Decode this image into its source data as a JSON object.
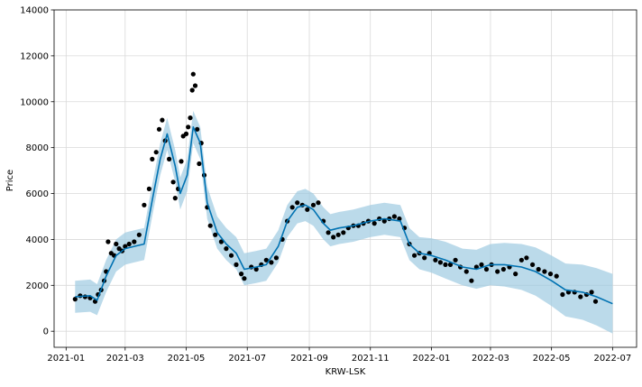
{
  "chart_data": {
    "type": "line",
    "xlabel": "KRW-LSK",
    "ylabel": "Price",
    "xlim": [
      "2020-12-20",
      "2022-07-25"
    ],
    "ylim": [
      -700,
      14000
    ],
    "x_ticks": [
      "2021-01",
      "2021-03",
      "2021-05",
      "2021-07",
      "2021-09",
      "2021-11",
      "2022-01",
      "2022-03",
      "2022-05",
      "2022-07"
    ],
    "y_ticks": [
      0,
      2000,
      4000,
      6000,
      8000,
      10000,
      12000,
      14000
    ],
    "grid": true,
    "colors": {
      "observed": "#000000",
      "forecast": "#0072b2",
      "uncertainty": "#9ecae1"
    },
    "series": [
      {
        "kind": "observed",
        "marker": "dot",
        "x": [
          "2021-01-10",
          "2021-01-15",
          "2021-01-20",
          "2021-01-25",
          "2021-01-30",
          "2021-02-02",
          "2021-02-05",
          "2021-02-08",
          "2021-02-10",
          "2021-02-12",
          "2021-02-15",
          "2021-02-18",
          "2021-02-20",
          "2021-02-23",
          "2021-02-26",
          "2021-03-01",
          "2021-03-05",
          "2021-03-10",
          "2021-03-15",
          "2021-03-20",
          "2021-03-25",
          "2021-03-28",
          "2021-04-01",
          "2021-04-04",
          "2021-04-07",
          "2021-04-10",
          "2021-04-14",
          "2021-04-18",
          "2021-04-20",
          "2021-04-23",
          "2021-04-26",
          "2021-04-28",
          "2021-05-01",
          "2021-05-03",
          "2021-05-05",
          "2021-05-07",
          "2021-05-08",
          "2021-05-10",
          "2021-05-12",
          "2021-05-14",
          "2021-05-16",
          "2021-05-19",
          "2021-05-22",
          "2021-05-25",
          "2021-05-30",
          "2021-06-05",
          "2021-06-10",
          "2021-06-15",
          "2021-06-20",
          "2021-06-25",
          "2021-06-28",
          "2021-07-05",
          "2021-07-10",
          "2021-07-15",
          "2021-07-20",
          "2021-07-25",
          "2021-07-30",
          "2021-08-05",
          "2021-08-10",
          "2021-08-15",
          "2021-08-20",
          "2021-08-25",
          "2021-08-30",
          "2021-09-05",
          "2021-09-10",
          "2021-09-15",
          "2021-09-20",
          "2021-09-25",
          "2021-09-30",
          "2021-10-05",
          "2021-10-10",
          "2021-10-15",
          "2021-10-20",
          "2021-10-25",
          "2021-10-30",
          "2021-11-05",
          "2021-11-10",
          "2021-11-15",
          "2021-11-20",
          "2021-11-25",
          "2021-11-30",
          "2021-12-05",
          "2021-12-10",
          "2021-12-15",
          "2021-12-20",
          "2021-12-25",
          "2021-12-30",
          "2022-01-05",
          "2022-01-10",
          "2022-01-15",
          "2022-01-20",
          "2022-01-25",
          "2022-01-30",
          "2022-02-05",
          "2022-02-10",
          "2022-02-15",
          "2022-02-20",
          "2022-02-25",
          "2022-03-02",
          "2022-03-08",
          "2022-03-14",
          "2022-03-20",
          "2022-03-26",
          "2022-04-01",
          "2022-04-06",
          "2022-04-12",
          "2022-04-18",
          "2022-04-24",
          "2022-04-30",
          "2022-05-06",
          "2022-05-12",
          "2022-05-18",
          "2022-05-24",
          "2022-05-30",
          "2022-06-05",
          "2022-06-10",
          "2022-06-14"
        ],
        "y": [
          1400,
          1550,
          1500,
          1450,
          1300,
          1600,
          1800,
          2200,
          2600,
          3900,
          3400,
          3300,
          3800,
          3600,
          3500,
          3700,
          3800,
          3900,
          4200,
          5500,
          6200,
          7500,
          7800,
          8800,
          9200,
          8300,
          7500,
          6500,
          5800,
          6200,
          7400,
          8500,
          8600,
          8900,
          9300,
          10500,
          11200,
          10700,
          8800,
          7300,
          8200,
          6800,
          5400,
          4600,
          4200,
          3900,
          3600,
          3300,
          2900,
          2500,
          2300,
          2800,
          2700,
          2900,
          3100,
          3000,
          3200,
          4000,
          4800,
          5400,
          5600,
          5500,
          5300,
          5500,
          5600,
          4800,
          4300,
          4100,
          4200,
          4300,
          4500,
          4600,
          4600,
          4700,
          4800,
          4700,
          4900,
          4800,
          4900,
          5000,
          4900,
          4500,
          3800,
          3300,
          3400,
          3200,
          3400,
          3100,
          3000,
          2900,
          2900,
          3100,
          2800,
          2600,
          2200,
          2800,
          2900,
          2700,
          2900,
          2600,
          2700,
          2800,
          2500,
          3100,
          3200,
          2900,
          2700,
          2600,
          2500,
          2400,
          1600,
          1700,
          1700,
          1500,
          1600,
          1700,
          1300
        ]
      },
      {
        "kind": "forecast",
        "x": [
          "2021-01-10",
          "2021-01-25",
          "2021-02-01",
          "2021-02-10",
          "2021-02-20",
          "2021-03-01",
          "2021-03-10",
          "2021-03-20",
          "2021-03-28",
          "2021-04-05",
          "2021-04-12",
          "2021-04-20",
          "2021-04-25",
          "2021-05-02",
          "2021-05-08",
          "2021-05-15",
          "2021-05-22",
          "2021-06-01",
          "2021-06-10",
          "2021-06-20",
          "2021-06-28",
          "2021-07-10",
          "2021-07-20",
          "2021-08-01",
          "2021-08-10",
          "2021-08-20",
          "2021-08-28",
          "2021-09-05",
          "2021-09-15",
          "2021-09-22",
          "2021-10-01",
          "2021-10-15",
          "2021-11-01",
          "2021-11-15",
          "2021-12-01",
          "2021-12-10",
          "2021-12-20",
          "2022-01-01",
          "2022-01-15",
          "2022-02-01",
          "2022-02-15",
          "2022-03-01",
          "2022-03-15",
          "2022-04-01",
          "2022-04-15",
          "2022-05-01",
          "2022-05-15",
          "2022-06-01",
          "2022-06-15",
          "2022-07-01"
        ],
        "y": [
          1500,
          1550,
          1350,
          2400,
          3300,
          3600,
          3700,
          3800,
          5700,
          7500,
          8600,
          7200,
          6000,
          6800,
          8900,
          8200,
          5600,
          4300,
          3800,
          3400,
          2700,
          2800,
          2900,
          3700,
          4800,
          5400,
          5500,
          5300,
          4700,
          4400,
          4500,
          4600,
          4800,
          4900,
          4800,
          3800,
          3400,
          3300,
          3100,
          2800,
          2700,
          2900,
          2900,
          2800,
          2600,
          2200,
          1800,
          1700,
          1500,
          1200
        ]
      }
    ],
    "uncertainty_band": {
      "x": [
        "2021-01-10",
        "2021-01-25",
        "2021-02-01",
        "2021-02-10",
        "2021-02-20",
        "2021-03-01",
        "2021-03-10",
        "2021-03-20",
        "2021-03-28",
        "2021-04-05",
        "2021-04-12",
        "2021-04-20",
        "2021-04-25",
        "2021-05-02",
        "2021-05-08",
        "2021-05-15",
        "2021-05-22",
        "2021-06-01",
        "2021-06-10",
        "2021-06-20",
        "2021-06-28",
        "2021-07-10",
        "2021-07-20",
        "2021-08-01",
        "2021-08-10",
        "2021-08-20",
        "2021-08-28",
        "2021-09-05",
        "2021-09-15",
        "2021-09-22",
        "2021-10-01",
        "2021-10-15",
        "2021-11-01",
        "2021-11-15",
        "2021-12-01",
        "2021-12-10",
        "2021-12-20",
        "2022-01-01",
        "2022-01-15",
        "2022-02-01",
        "2022-02-15",
        "2022-03-01",
        "2022-03-15",
        "2022-04-01",
        "2022-04-15",
        "2022-05-01",
        "2022-05-15",
        "2022-06-01",
        "2022-06-15",
        "2022-07-01"
      ],
      "lower": [
        800,
        850,
        700,
        1700,
        2600,
        2900,
        3000,
        3100,
        5000,
        6800,
        7900,
        6500,
        5300,
        6100,
        8200,
        7500,
        4900,
        3600,
        3100,
        2700,
        2000,
        2100,
        2200,
        3000,
        4100,
        4700,
        4800,
        4600,
        4000,
        3700,
        3800,
        3900,
        4100,
        4200,
        4100,
        3100,
        2700,
        2550,
        2300,
        2000,
        1850,
        2000,
        1950,
        1800,
        1550,
        1100,
        650,
        500,
        250,
        -100
      ],
      "upper": [
        2200,
        2250,
        2050,
        3100,
        4000,
        4300,
        4400,
        4500,
        6400,
        8200,
        9300,
        7900,
        6700,
        7500,
        9600,
        8900,
        6300,
        5000,
        4500,
        4100,
        3400,
        3500,
        3600,
        4400,
        5500,
        6100,
        6200,
        6000,
        5400,
        5100,
        5200,
        5300,
        5500,
        5600,
        5500,
        4500,
        4100,
        4050,
        3900,
        3600,
        3550,
        3800,
        3850,
        3800,
        3650,
        3300,
        2950,
        2900,
        2750,
        2500
      ]
    }
  }
}
